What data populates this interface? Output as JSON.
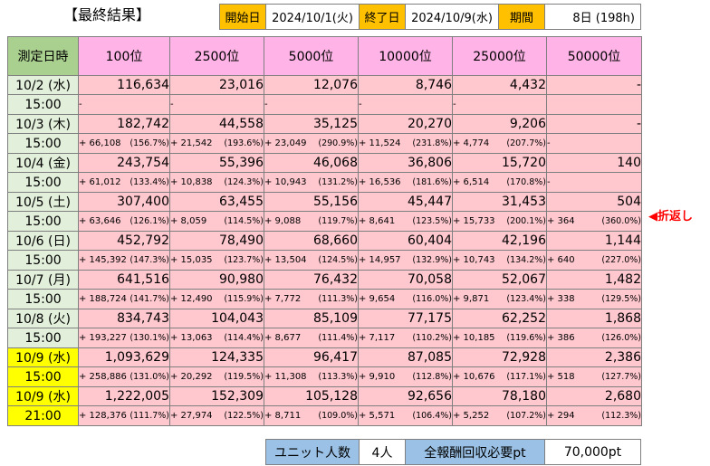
{
  "title": "【最終結果】",
  "header": {
    "start_label": "開始日",
    "start_value": "2024/10/1(火)",
    "end_label": "終了日",
    "end_value": "2024/10/9(水)",
    "period_label": "期間",
    "period_value": "8日 (198h)"
  },
  "table": {
    "corner": "測定日時",
    "columns": [
      "100位",
      "2500位",
      "5000位",
      "10000位",
      "25000位",
      "50000位"
    ],
    "rows": [
      {
        "date": "10/2 (水)",
        "time": "15:00",
        "highlight": false,
        "values": [
          "116,634",
          "23,016",
          "12,076",
          "8,746",
          "4,432",
          "-"
        ],
        "deltas": [
          [
            "-",
            ""
          ],
          [
            "-",
            ""
          ],
          [
            "-",
            ""
          ],
          [
            "-",
            ""
          ],
          [
            "-",
            ""
          ],
          [
            "",
            ""
          ]
        ]
      },
      {
        "date": "10/3 (木)",
        "time": "15:00",
        "highlight": false,
        "values": [
          "182,742",
          "44,558",
          "35,125",
          "20,270",
          "9,206",
          "-"
        ],
        "deltas": [
          [
            "+ 66,108",
            "(156.7%)"
          ],
          [
            "+ 21,542",
            "(193.6%)"
          ],
          [
            "+ 23,049",
            "(290.9%)"
          ],
          [
            "+ 11,524",
            "(231.8%)"
          ],
          [
            "+ 4,774",
            "(207.7%)"
          ],
          [
            "-",
            ""
          ]
        ]
      },
      {
        "date": "10/4 (金)",
        "time": "15:00",
        "highlight": false,
        "values": [
          "243,754",
          "55,396",
          "46,068",
          "36,806",
          "15,720",
          "140"
        ],
        "deltas": [
          [
            "+ 61,012",
            "(133.4%)"
          ],
          [
            "+ 10,838",
            "(124.3%)"
          ],
          [
            "+ 10,943",
            "(131.2%)"
          ],
          [
            "+ 16,536",
            "(181.6%)"
          ],
          [
            "+ 6,514",
            "(170.8%)"
          ],
          [
            "-",
            ""
          ]
        ]
      },
      {
        "date": "10/5 (土)",
        "time": "15:00",
        "highlight": false,
        "values": [
          "307,400",
          "63,455",
          "55,156",
          "45,447",
          "31,453",
          "504"
        ],
        "deltas": [
          [
            "+ 63,646",
            "(126.1%)"
          ],
          [
            "+ 8,059",
            "(114.5%)"
          ],
          [
            "+ 9,088",
            "(119.7%)"
          ],
          [
            "+ 8,641",
            "(123.5%)"
          ],
          [
            "+ 15,733",
            "(200.1%)"
          ],
          [
            "+ 364",
            "(360.0%)"
          ]
        ]
      },
      {
        "date": "10/6 (日)",
        "time": "15:00",
        "highlight": false,
        "values": [
          "452,792",
          "78,490",
          "68,660",
          "60,404",
          "42,196",
          "1,144"
        ],
        "deltas": [
          [
            "+ 145,392",
            "(147.3%)"
          ],
          [
            "+ 15,035",
            "(123.7%)"
          ],
          [
            "+ 13,504",
            "(124.5%)"
          ],
          [
            "+ 14,957",
            "(132.9%)"
          ],
          [
            "+ 10,743",
            "(134.2%)"
          ],
          [
            "+ 640",
            "(227.0%)"
          ]
        ]
      },
      {
        "date": "10/7 (月)",
        "time": "15:00",
        "highlight": false,
        "values": [
          "641,516",
          "90,980",
          "76,432",
          "70,058",
          "52,067",
          "1,482"
        ],
        "deltas": [
          [
            "+ 188,724",
            "(141.7%)"
          ],
          [
            "+ 12,490",
            "(115.9%)"
          ],
          [
            "+ 7,772",
            "(111.3%)"
          ],
          [
            "+ 9,654",
            "(116.0%)"
          ],
          [
            "+ 9,871",
            "(123.4%)"
          ],
          [
            "+ 338",
            "(129.5%)"
          ]
        ]
      },
      {
        "date": "10/8 (火)",
        "time": "15:00",
        "highlight": false,
        "values": [
          "834,743",
          "104,043",
          "85,109",
          "77,175",
          "62,252",
          "1,868"
        ],
        "deltas": [
          [
            "+ 193,227",
            "(130.1%)"
          ],
          [
            "+ 13,063",
            "(114.4%)"
          ],
          [
            "+ 8,677",
            "(111.4%)"
          ],
          [
            "+ 7,117",
            "(110.2%)"
          ],
          [
            "+ 10,185",
            "(119.6%)"
          ],
          [
            "+ 386",
            "(126.0%)"
          ]
        ]
      },
      {
        "date": "10/9 (水)",
        "time": "15:00",
        "highlight": true,
        "values": [
          "1,093,629",
          "124,335",
          "96,417",
          "87,085",
          "72,928",
          "2,386"
        ],
        "deltas": [
          [
            "+ 258,886",
            "(131.0%)"
          ],
          [
            "+ 20,292",
            "(119.5%)"
          ],
          [
            "+ 11,308",
            "(113.3%)"
          ],
          [
            "+ 9,910",
            "(112.8%)"
          ],
          [
            "+ 10,676",
            "(117.1%)"
          ],
          [
            "+ 518",
            "(127.7%)"
          ]
        ]
      },
      {
        "date": "10/9 (水)",
        "time": "21:00",
        "highlight": true,
        "values": [
          "1,222,005",
          "152,309",
          "105,128",
          "92,656",
          "78,180",
          "2,680"
        ],
        "deltas": [
          [
            "+ 128,376",
            "(111.7%)"
          ],
          [
            "+ 27,974",
            "(122.5%)"
          ],
          [
            "+ 8,711",
            "(109.0%)"
          ],
          [
            "+ 5,571",
            "(106.4%)"
          ],
          [
            "+ 5,252",
            "(107.2%)"
          ],
          [
            "+ 294",
            "(112.3%)"
          ]
        ]
      }
    ]
  },
  "note": "◀折返し",
  "footer": {
    "unit_label": "ユニット人数",
    "unit_value": "4人",
    "reward_label": "全報酬回収必要pt",
    "reward_value": "70,000pt"
  },
  "colors": {
    "header_label": "#ffc000",
    "corner": "#a9d08e",
    "column_header": "#ffb3e6",
    "date_cell": "#e2efda",
    "date_highlight": "#ffff00",
    "value_cell": "#ffc7ce",
    "footer_label": "#9bc2e6",
    "note": "#ff0000"
  }
}
